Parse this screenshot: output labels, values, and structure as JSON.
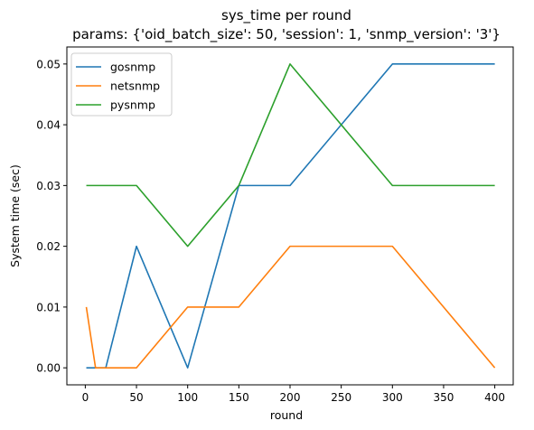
{
  "chart_data": {
    "type": "line",
    "title": "sys_time per round",
    "subtitle": "params: {'oid_batch_size': 50, 'session': 1, 'snmp_version': '3'}",
    "xlabel": "round",
    "ylabel": "System time (sec)",
    "xlim": [
      -18,
      418
    ],
    "ylim": [
      -0.0028,
      0.0528
    ],
    "xticks": [
      0,
      50,
      100,
      150,
      200,
      250,
      300,
      350,
      400
    ],
    "xtick_labels": [
      "0",
      "50",
      "100",
      "150",
      "200",
      "250",
      "300",
      "350",
      "400"
    ],
    "yticks": [
      0.0,
      0.01,
      0.02,
      0.03,
      0.04,
      0.05
    ],
    "ytick_labels": [
      "0.00",
      "0.01",
      "0.02",
      "0.03",
      "0.04",
      "0.05"
    ],
    "grid": false,
    "legend_position": "top-left",
    "series": [
      {
        "name": "gosnmp",
        "color": "#1f77b4",
        "x": [
          1,
          10,
          20,
          50,
          100,
          150,
          200,
          300,
          400
        ],
        "y": [
          0.0,
          0.0,
          0.0,
          0.02,
          0.0,
          0.03,
          0.03,
          0.05,
          0.05
        ]
      },
      {
        "name": "netsnmp",
        "color": "#ff7f0e",
        "x": [
          1,
          10,
          20,
          50,
          100,
          150,
          200,
          300,
          400
        ],
        "y": [
          0.01,
          0.0,
          0.0,
          0.0,
          0.01,
          0.01,
          0.02,
          0.02,
          0.0
        ]
      },
      {
        "name": "pysnmp",
        "color": "#2ca02c",
        "x": [
          1,
          10,
          20,
          50,
          100,
          150,
          200,
          300,
          400
        ],
        "y": [
          0.03,
          0.03,
          0.03,
          0.03,
          0.02,
          0.03,
          0.05,
          0.03,
          0.03
        ]
      }
    ]
  }
}
